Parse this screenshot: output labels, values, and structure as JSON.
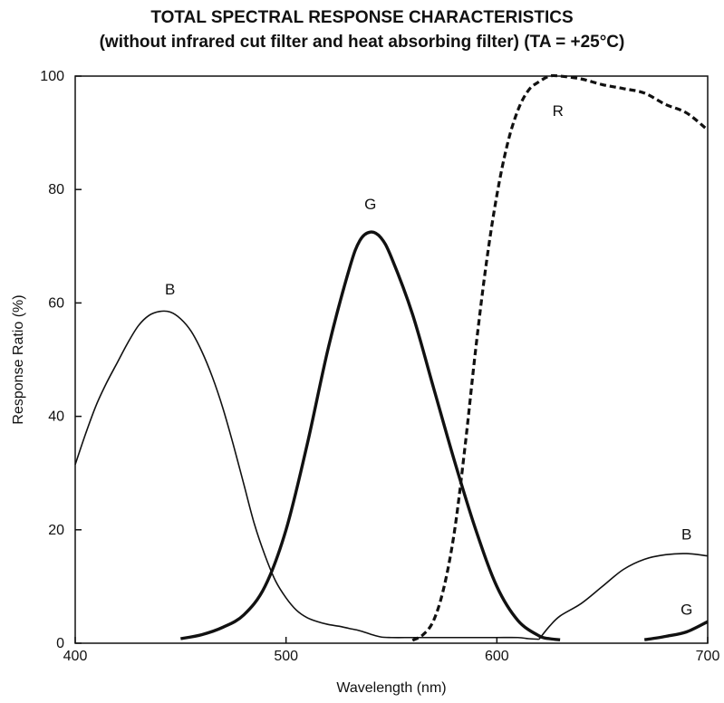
{
  "chart_data": {
    "type": "line",
    "title": "TOTAL SPECTRAL RESPONSE CHARACTERISTICS",
    "subtitle": "(without infrared cut filter and heat absorbing filter) (TA = +25°C)",
    "xlabel": "Wavelength (nm)",
    "ylabel": "Response Ratio (%)",
    "xlim": [
      400,
      700
    ],
    "ylim": [
      0,
      100
    ],
    "xticks": [
      "400",
      "500",
      "600",
      "700"
    ],
    "yticks": [
      "0",
      "20",
      "40",
      "60",
      "80",
      "100"
    ],
    "grid": false,
    "series": [
      {
        "name": "B",
        "style": "thin",
        "x": [
          400,
          405,
          410,
          415,
          420,
          425,
          430,
          435,
          440,
          445,
          450,
          455,
          460,
          465,
          470,
          475,
          480,
          485,
          490,
          495,
          500,
          505,
          510,
          515,
          520,
          525,
          530,
          535,
          540,
          545,
          550,
          560,
          570,
          580,
          590,
          600,
          610,
          615,
          620
        ],
        "y": [
          31.5,
          37,
          42,
          46,
          49.5,
          53,
          56,
          57.8,
          58.5,
          58.4,
          57.2,
          55,
          51.5,
          47,
          41.5,
          35,
          28,
          21,
          15.5,
          11,
          8,
          5.8,
          4.5,
          3.8,
          3.3,
          3,
          2.6,
          2.2,
          1.6,
          1.1,
          1,
          1,
          1,
          1,
          1,
          1,
          1,
          0.8,
          0.7
        ]
      },
      {
        "name": "G",
        "style": "thick",
        "x": [
          450,
          460,
          470,
          480,
          490,
          500,
          510,
          520,
          530,
          535,
          540,
          545,
          550,
          560,
          570,
          580,
          590,
          600,
          610,
          620,
          625,
          630
        ],
        "y": [
          0.8,
          1.5,
          2.8,
          5,
          10,
          20,
          35,
          52,
          66,
          71,
          72.5,
          71.5,
          68,
          58,
          45,
          32,
          20,
          10,
          4,
          1.3,
          0.8,
          0.6
        ]
      },
      {
        "name": "R",
        "style": "dashed",
        "x": [
          560,
          565,
          570,
          575,
          580,
          585,
          590,
          595,
          600,
          605,
          610,
          615,
          620,
          625,
          630,
          640,
          650,
          660,
          670,
          680,
          690,
          700
        ],
        "y": [
          0.5,
          1.5,
          4,
          10,
          20,
          35,
          52,
          67,
          79,
          88,
          94,
          97.5,
          99,
          100,
          100,
          99.5,
          98.5,
          97.8,
          97,
          95,
          93.5,
          90.5
        ]
      },
      {
        "name": "B",
        "style": "thin",
        "x": [
          620,
          625,
          630,
          640,
          650,
          660,
          670,
          680,
          690,
          700
        ],
        "y": [
          0.7,
          3,
          4.8,
          7,
          10,
          13,
          14.8,
          15.6,
          15.8,
          15.4
        ]
      },
      {
        "name": "G",
        "style": "thick",
        "x": [
          670,
          680,
          690,
          700
        ],
        "y": [
          0.6,
          1.2,
          2,
          3.8
        ]
      }
    ],
    "annotations": [
      {
        "text": "B",
        "x": 445,
        "y": 61.5
      },
      {
        "text": "G",
        "x": 540,
        "y": 76.5
      },
      {
        "text": "R",
        "x": 629,
        "y": 93
      },
      {
        "text": "B",
        "x": 690,
        "y": 18.3
      },
      {
        "text": "G",
        "x": 690,
        "y": 5
      }
    ]
  }
}
